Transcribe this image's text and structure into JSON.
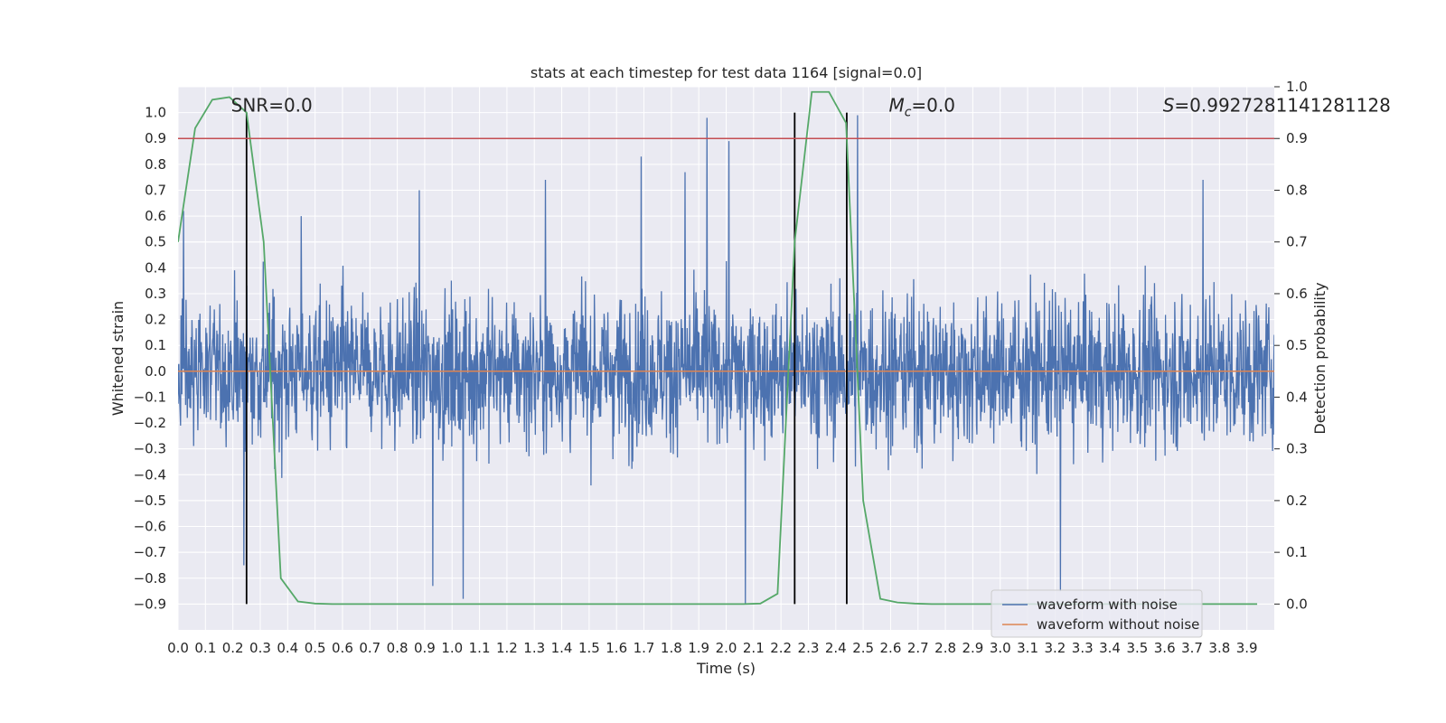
{
  "chart_data": {
    "type": "line",
    "title": "stats at each timestep for test data 1164 [signal=0.0]",
    "xlabel": "Time (s)",
    "ylabel": "Whitened strain",
    "ylabel_right": "Detection probability",
    "xlim": [
      0.0,
      4.0
    ],
    "ylim": [
      -1.0,
      1.1
    ],
    "ylim_right": [
      -0.05,
      1.0
    ],
    "x_ticks": [
      0.0,
      0.1,
      0.2,
      0.3,
      0.4,
      0.5,
      0.6,
      0.7,
      0.8,
      0.9,
      1.0,
      1.1,
      1.2,
      1.3,
      1.4,
      1.5,
      1.6,
      1.7,
      1.8,
      1.9,
      2.0,
      2.1,
      2.2,
      2.3,
      2.4,
      2.5,
      2.6,
      2.7,
      2.8,
      2.9,
      3.0,
      3.1,
      3.2,
      3.3,
      3.4,
      3.5,
      3.6,
      3.7,
      3.8,
      3.9
    ],
    "x_tick_labels": [
      "0.0",
      "0.1",
      "0.2",
      "0.3",
      "0.4",
      "0.5",
      "0.6",
      "0.7",
      "0.8",
      "0.9",
      "1.0",
      "1.1",
      "1.2",
      "1.3",
      "1.4",
      "1.5",
      "1.6",
      "1.7",
      "1.8",
      "1.9",
      "2.0",
      "2.1",
      "2.2",
      "2.3",
      "2.4",
      "2.5",
      "2.6",
      "2.7",
      "2.8",
      "2.9",
      "3.0",
      "3.1",
      "3.2",
      "3.3",
      "3.4",
      "3.5",
      "3.6",
      "3.7",
      "3.8",
      "3.9"
    ],
    "y_ticks": [
      1.0,
      0.9,
      0.8,
      0.7,
      0.6,
      0.5,
      0.4,
      0.3,
      0.2,
      0.1,
      0.0,
      -0.1,
      -0.2,
      -0.3,
      -0.4,
      -0.5,
      -0.6,
      -0.7,
      -0.8,
      -0.9
    ],
    "y_tick_labels": [
      "1.0",
      "0.9",
      "0.8",
      "0.7",
      "0.6",
      "0.5",
      "0.4",
      "0.3",
      "0.2",
      "0.1",
      "0.0",
      "−0.1",
      "−0.2",
      "−0.3",
      "−0.4",
      "−0.5",
      "−0.6",
      "−0.7",
      "−0.8",
      "−0.9"
    ],
    "y_right_ticks": [
      1.0,
      0.9,
      0.8,
      0.7,
      0.6,
      0.5,
      0.4,
      0.3,
      0.2,
      0.1,
      0.0
    ],
    "y_right_tick_labels": [
      "1.0",
      "0.9",
      "0.8",
      "0.7",
      "0.6",
      "0.5",
      "0.4",
      "0.3",
      "0.2",
      "0.1",
      "0.0"
    ],
    "grid": true,
    "legend_position": "bottom-right",
    "annotations": [
      {
        "text": "SNR=0.0",
        "x": 0.2
      },
      {
        "text": "M_c=0.0",
        "x": 2.6
      },
      {
        "text": "S=0.9927281141281128",
        "x": 3.6
      }
    ],
    "annotation_labels": {
      "snr": "SNR=0.0",
      "mc_symbol": "M",
      "mc_sub": "c",
      "mc_value": "=0.0",
      "s_symbol": "S",
      "s_value": "=0.9927281141281128"
    },
    "vertical_lines_x": [
      0.25,
      2.25,
      2.44
    ],
    "threshold_probability": 0.9,
    "series": [
      {
        "name": "waveform with noise",
        "axis": "left",
        "color": "#4c72b0",
        "description_range": [
          -0.9,
          1.0
        ],
        "peaks": [
          {
            "x": 0.02,
            "y": 0.62
          },
          {
            "x": 0.24,
            "y": -0.75
          },
          {
            "x": 0.45,
            "y": 0.6
          },
          {
            "x": 0.88,
            "y": 0.7
          },
          {
            "x": 0.93,
            "y": -0.83
          },
          {
            "x": 1.04,
            "y": -0.88
          },
          {
            "x": 1.34,
            "y": 0.74
          },
          {
            "x": 1.69,
            "y": 0.83
          },
          {
            "x": 1.85,
            "y": 0.77
          },
          {
            "x": 1.93,
            "y": 0.98
          },
          {
            "x": 2.01,
            "y": 0.89
          },
          {
            "x": 2.07,
            "y": -0.9
          },
          {
            "x": 2.48,
            "y": 0.99
          },
          {
            "x": 3.22,
            "y": -0.85
          },
          {
            "x": 3.74,
            "y": 0.74
          }
        ]
      },
      {
        "name": "waveform without noise",
        "axis": "left",
        "color": "#dd8452",
        "x": [
          0.0,
          4.0
        ],
        "y": [
          0.0,
          0.0
        ]
      },
      {
        "name": "detection probability",
        "axis": "right",
        "color": "#55a868",
        "x": [
          0.0,
          0.0625,
          0.125,
          0.1875,
          0.25,
          0.3125,
          0.375,
          0.4375,
          0.5,
          0.5625,
          0.625,
          0.6875,
          0.75,
          0.8125,
          0.875,
          0.9375,
          1.0,
          1.0625,
          1.125,
          1.1875,
          1.25,
          1.3125,
          1.375,
          1.4375,
          1.5,
          1.5625,
          1.625,
          1.6875,
          1.75,
          1.8125,
          1.875,
          1.9375,
          2.0,
          2.0625,
          2.125,
          2.1875,
          2.25,
          2.3125,
          2.375,
          2.4375,
          2.5,
          2.5625,
          2.625,
          2.6875,
          2.75,
          2.8125,
          2.875,
          2.9375,
          3.0,
          3.0625,
          3.125,
          3.1875,
          3.25,
          3.3125,
          3.375,
          3.4375,
          3.5,
          3.5625,
          3.625,
          3.6875,
          3.75,
          3.8125,
          3.875,
          3.9375
        ],
        "y": [
          0.7,
          0.92,
          0.975,
          0.98,
          0.95,
          0.7,
          0.05,
          0.005,
          0.001,
          0.0,
          0.0,
          0.0,
          0.0,
          0.0,
          0.0,
          0.0,
          0.0,
          0.0,
          0.0,
          0.0,
          0.0,
          0.0,
          0.0,
          0.0,
          0.0,
          0.0,
          0.0,
          0.0,
          0.0,
          0.0,
          0.0,
          0.0,
          0.0,
          0.0,
          0.001,
          0.02,
          0.7,
          0.99,
          0.99,
          0.93,
          0.2,
          0.01,
          0.003,
          0.001,
          0.0,
          0.0,
          0.0,
          0.0,
          0.0,
          0.0,
          0.0,
          0.0,
          0.0,
          0.0,
          0.0,
          0.0,
          0.0,
          0.0,
          0.0,
          0.0,
          0.0,
          0.0,
          0.0,
          0.0
        ]
      }
    ]
  }
}
